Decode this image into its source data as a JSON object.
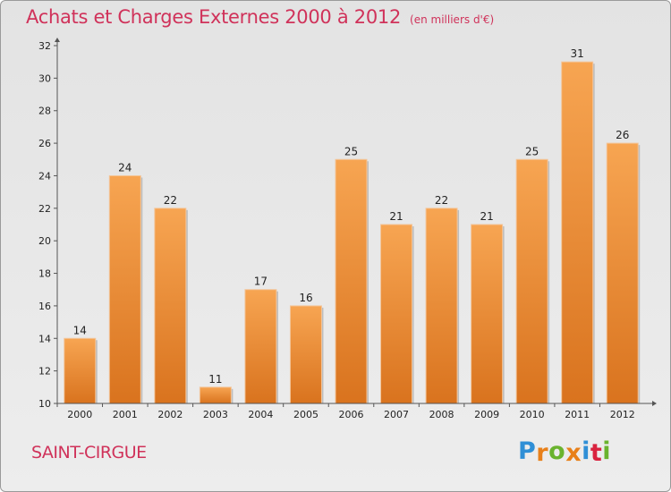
{
  "header": {
    "title": "Achats et Charges Externes 2000 à 2012",
    "subtitle": "(en milliers d'€)"
  },
  "footer": {
    "place": "SAINT-CIRGUE",
    "brand": "Proxiti",
    "brand_colors": [
      "#2f8fd6",
      "#e8801a",
      "#6ab32e",
      "#e8801a",
      "#2f8fd6",
      "#d9233f",
      "#6ab32e"
    ]
  },
  "colors": {
    "bar_light": "#f7a552",
    "bar_dark": "#d9731e",
    "axis": "#555555",
    "text": "#222222"
  },
  "chart_data": {
    "type": "bar",
    "categories": [
      "2000",
      "2001",
      "2002",
      "2003",
      "2004",
      "2005",
      "2006",
      "2007",
      "2008",
      "2009",
      "2010",
      "2011",
      "2012"
    ],
    "values": [
      14,
      24,
      22,
      11,
      17,
      16,
      25,
      21,
      22,
      21,
      25,
      31,
      26
    ],
    "ylim": [
      10,
      32
    ],
    "yticks": [
      10,
      12,
      14,
      16,
      18,
      20,
      22,
      24,
      26,
      28,
      30,
      32
    ],
    "grid": false,
    "title": "Achats et Charges Externes 2000 à 2012",
    "xlabel": "",
    "ylabel": ""
  }
}
